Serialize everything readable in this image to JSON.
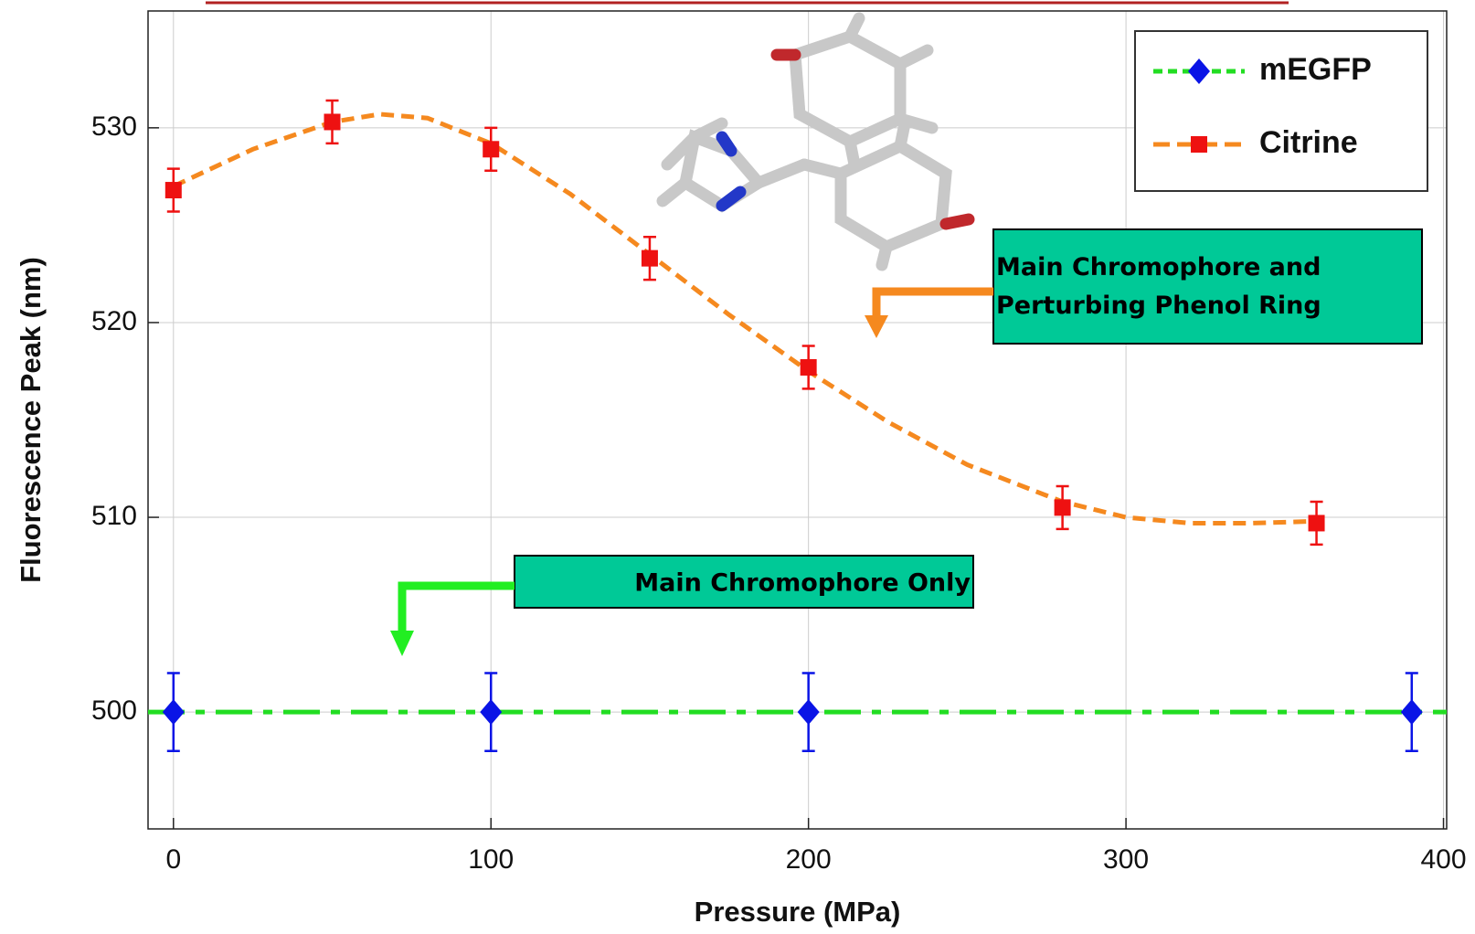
{
  "chart_data": {
    "type": "scatter",
    "x_label": "Pressure (MPa)",
    "y_label": "Fluorescence Peak (nm)",
    "xlim": [
      -8,
      401
    ],
    "ylim": [
      494,
      536
    ],
    "xticks": [
      0,
      100,
      200,
      300,
      400
    ],
    "yticks": [
      500,
      510,
      520,
      530
    ],
    "grid": true,
    "legend": "upper right",
    "series": [
      {
        "name": "mEGFP",
        "color": "#0a14e6",
        "line_color": "#22dd22",
        "marker": "diamond",
        "x": [
          0,
          100,
          200,
          390
        ],
        "values": [
          500,
          500,
          500,
          500
        ],
        "errors": [
          2,
          2,
          2,
          2
        ],
        "fit_x": [
          -8,
          401
        ],
        "fit_values": [
          500,
          500
        ]
      },
      {
        "name": "Citrine",
        "color": "#ee1111",
        "line_color": "#f5891f",
        "marker": "square",
        "x": [
          0,
          50,
          100,
          150,
          200,
          280,
          360
        ],
        "values": [
          526.8,
          530.3,
          528.9,
          523.3,
          517.7,
          510.5,
          509.7
        ],
        "errors": [
          1.1,
          1.1,
          1.1,
          1.1,
          1.1,
          1.1,
          1.1
        ],
        "fit_x": [
          0,
          25,
          50,
          65,
          80,
          100,
          125,
          150,
          175,
          200,
          225,
          250,
          280,
          300,
          320,
          340,
          360
        ],
        "fit_values": [
          527,
          528.9,
          530.3,
          530.7,
          530.5,
          529.2,
          526.6,
          523.5,
          520.4,
          517.5,
          514.9,
          512.7,
          510.8,
          510,
          509.7,
          509.7,
          509.8
        ]
      }
    ],
    "annotations": [
      "Main Chromophore and\nPerturbing Phenol Ring",
      "Main Chromophore Only"
    ]
  }
}
